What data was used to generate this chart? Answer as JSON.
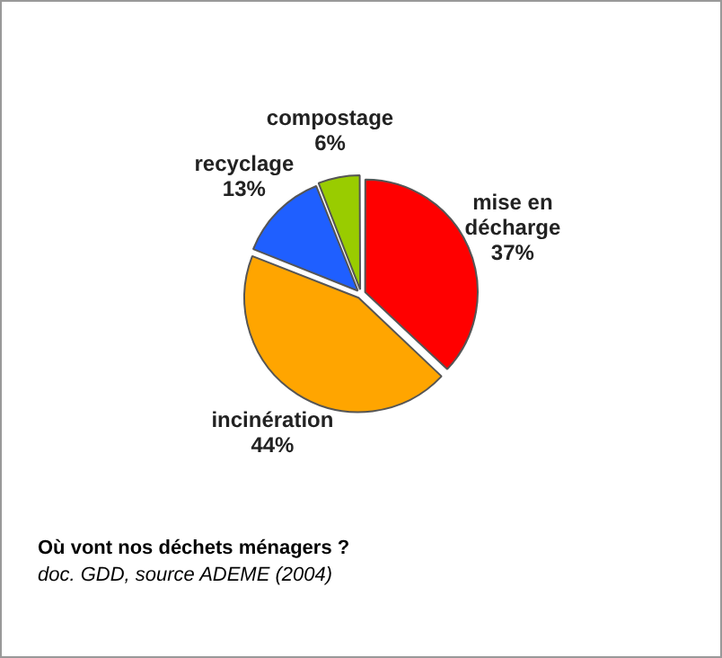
{
  "chart_data": {
    "type": "pie",
    "title": "Où vont nos déchets ménagers ?",
    "annotations": [
      "doc. GDD, source ADEME (2004)"
    ],
    "categories": [
      "mise en décharge",
      "incinération",
      "recyclage",
      "compostage"
    ],
    "values": [
      37,
      44,
      13,
      6
    ],
    "colors": [
      "#ff0000",
      "#ffa500",
      "#1f5fff",
      "#99cc00"
    ],
    "value_labels": [
      "37%",
      "44%",
      "13%",
      "6%"
    ],
    "legend": false
  }
}
